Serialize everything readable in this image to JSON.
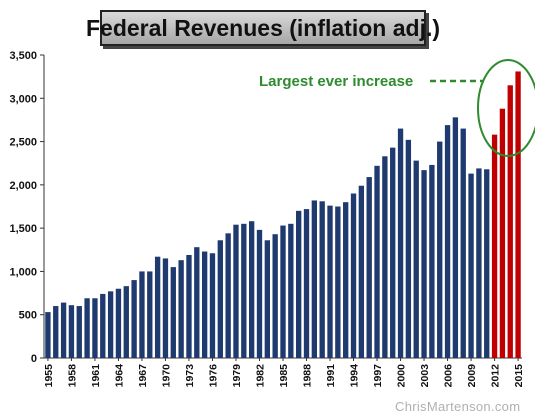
{
  "chart_data": {
    "type": "bar",
    "title": "Federal Revenues (inflation adj.)",
    "xlabel": "",
    "ylabel": "",
    "ylim": [
      0,
      3500
    ],
    "yticks": [
      0,
      500,
      1000,
      1500,
      2000,
      2500,
      3000,
      3500
    ],
    "ytick_labels": [
      "0",
      "500",
      "1,000",
      "1,500",
      "2,000",
      "2,500",
      "3,000",
      "3,500"
    ],
    "grid": false,
    "categories": [
      1955,
      1956,
      1957,
      1958,
      1959,
      1960,
      1961,
      1962,
      1963,
      1964,
      1965,
      1966,
      1967,
      1968,
      1969,
      1970,
      1971,
      1972,
      1973,
      1974,
      1975,
      1976,
      1977,
      1978,
      1979,
      1980,
      1981,
      1982,
      1983,
      1984,
      1985,
      1986,
      1987,
      1988,
      1989,
      1990,
      1991,
      1992,
      1993,
      1994,
      1995,
      1996,
      1997,
      1998,
      1999,
      2000,
      2001,
      2002,
      2003,
      2004,
      2005,
      2006,
      2007,
      2008,
      2009,
      2010,
      2011,
      2012,
      2013,
      2014,
      2015
    ],
    "xtick_labels": [
      "1955",
      "1958",
      "1961",
      "1964",
      "1967",
      "1970",
      "1973",
      "1976",
      "1979",
      "1982",
      "1985",
      "1988",
      "1991",
      "1994",
      "1997",
      "2000",
      "2003",
      "2006",
      "2009",
      "2012",
      "2015"
    ],
    "values": [
      530,
      600,
      640,
      610,
      600,
      690,
      690,
      740,
      770,
      800,
      830,
      900,
      1000,
      1000,
      1170,
      1150,
      1050,
      1130,
      1190,
      1280,
      1230,
      1210,
      1360,
      1440,
      1540,
      1550,
      1580,
      1480,
      1360,
      1430,
      1530,
      1550,
      1700,
      1720,
      1820,
      1810,
      1760,
      1750,
      1800,
      1900,
      1990,
      2090,
      2220,
      2330,
      2430,
      2650,
      2520,
      2280,
      2170,
      2230,
      2500,
      2690,
      2780,
      2650,
      2130,
      2190,
      2180,
      2580,
      2880,
      3150,
      3310
    ],
    "highlight_from_index": 57,
    "colors": {
      "normal": "#1f3a6e",
      "highlight": "#c00000",
      "annotation": "#2e8b2e"
    },
    "annotations": [
      {
        "text": "Largest ever increase",
        "style": "dashed-arrow",
        "target": "2012-2015"
      }
    ]
  },
  "watermark": "ChrisMartenson.com"
}
